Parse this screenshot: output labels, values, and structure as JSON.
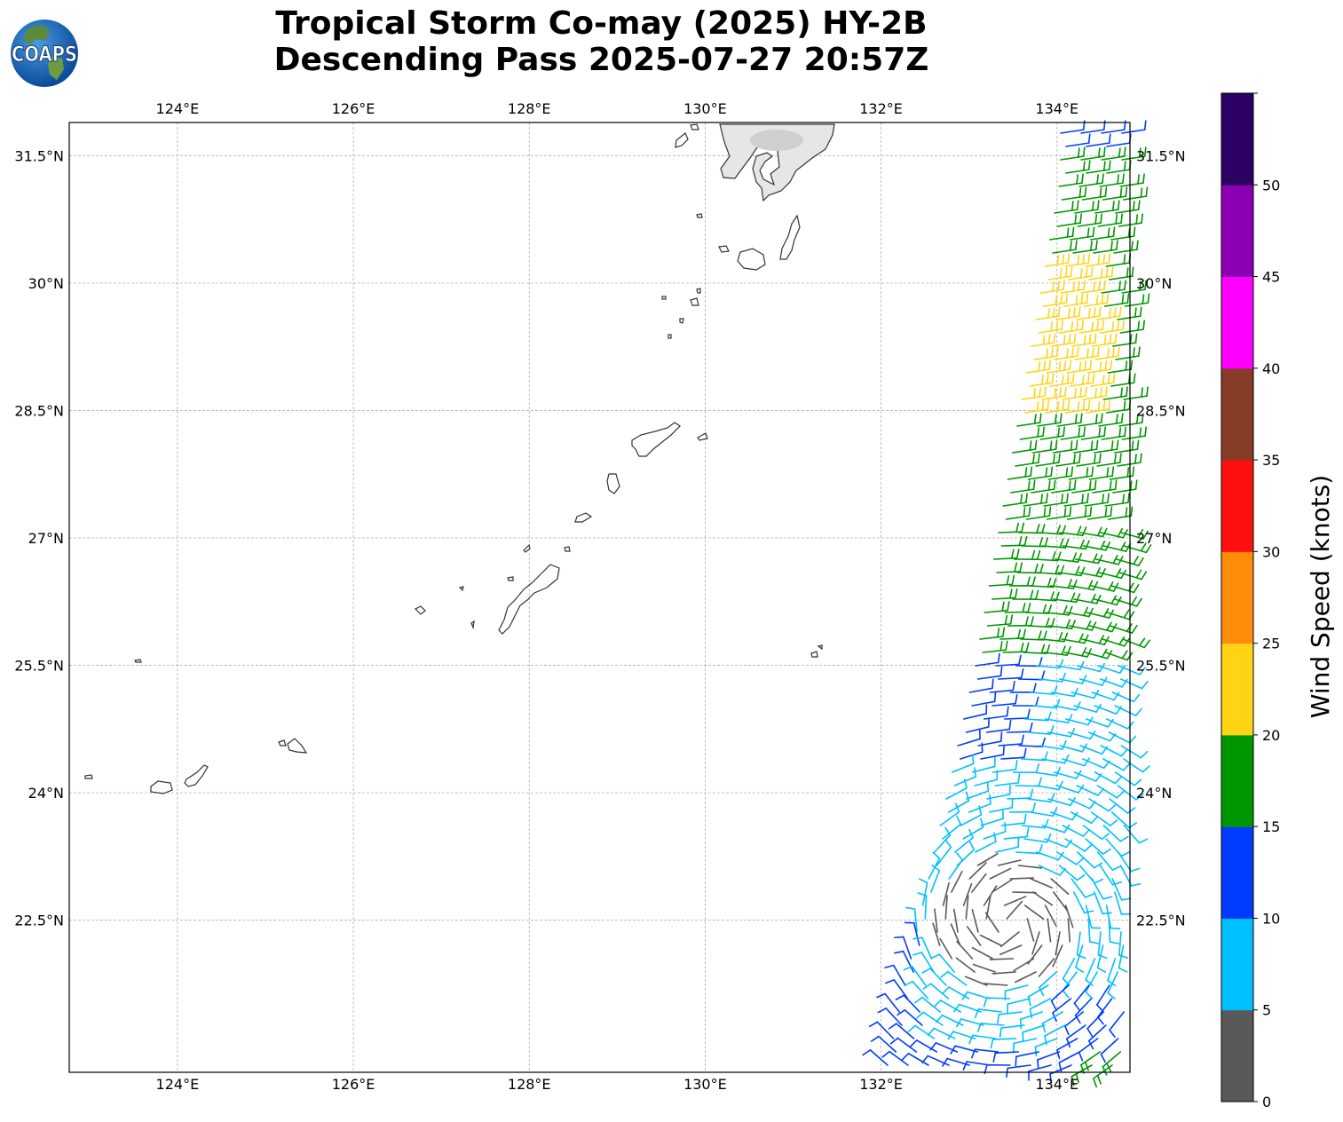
{
  "title": {
    "line1": "Tropical Storm Co-may (2025) HY-2B",
    "line2": "Descending Pass 2025-07-27 20:57Z"
  },
  "logo": {
    "text": "COAPS",
    "icon": "coaps-globe-logo-icon"
  },
  "map": {
    "lon_ticks": [
      "124°E",
      "126°E",
      "128°E",
      "130°E",
      "132°E",
      "134°E"
    ],
    "lat_ticks": [
      "31.5°N",
      "30°N",
      "28.5°N",
      "27°N",
      "25.5°N",
      "24°N",
      "22.5°N"
    ],
    "lon_range": [
      122.77,
      134.83
    ],
    "lat_range": [
      20.71,
      31.89
    ],
    "grid": true
  },
  "colorbar": {
    "label": "Wind Speed (knots)",
    "ticks": [
      "0",
      "5",
      "10",
      "15",
      "20",
      "25",
      "30",
      "35",
      "40",
      "45",
      "50"
    ],
    "colors": [
      "#595959",
      "#00bfff",
      "#003cff",
      "#009600",
      "#ffd414",
      "#ff8c0a",
      "#ff0f0f",
      "#873c28",
      "#ff00ff",
      "#8c00b4",
      "#2d0064"
    ]
  }
}
